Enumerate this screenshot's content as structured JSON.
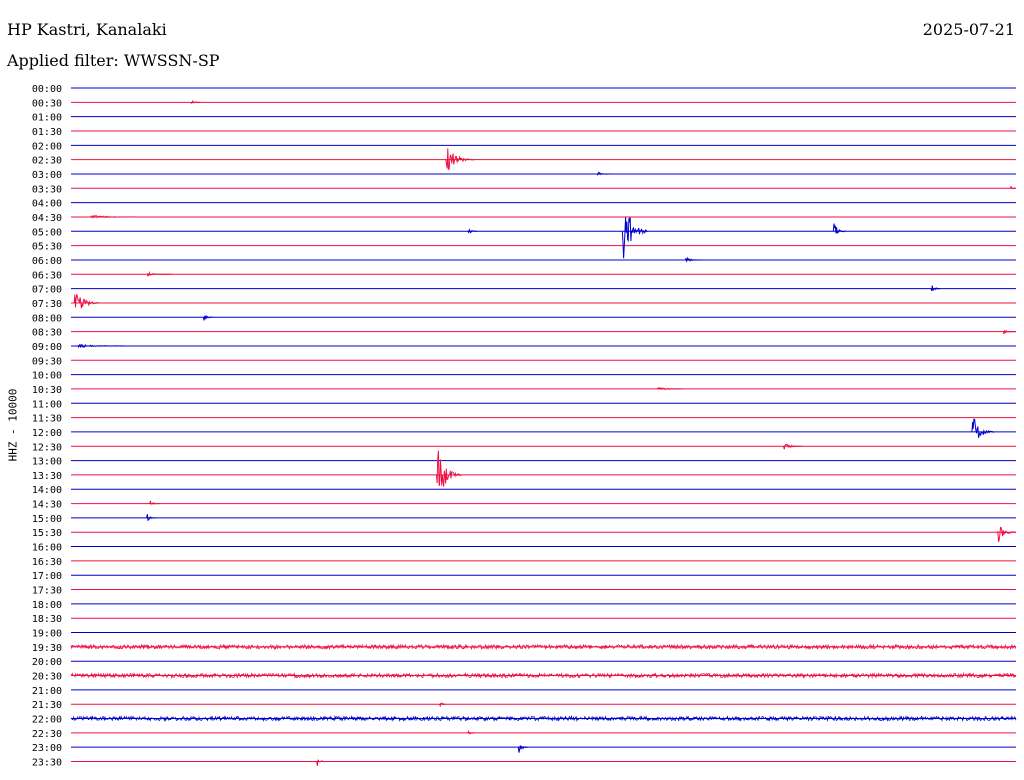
{
  "header": {
    "station": "HP Kastri, Kanalaki",
    "date": "2025-07-21",
    "filter": "Applied filter: WWSSN-SP"
  },
  "chart_data": {
    "type": "line",
    "title": "HP Kastri, Kanalaki",
    "subtitle": "Applied filter: WWSSN-SP",
    "date": "2025-07-21",
    "ylabel": "HHZ - 10000",
    "colors": {
      "even": "#0000cc",
      "odd": "#ee1144"
    },
    "row_labels": [
      "00:00",
      "00:30",
      "01:00",
      "01:30",
      "02:00",
      "02:30",
      "03:00",
      "03:30",
      "04:00",
      "04:30",
      "05:00",
      "05:30",
      "06:00",
      "06:30",
      "07:00",
      "07:30",
      "08:00",
      "08:30",
      "09:00",
      "09:30",
      "10:00",
      "10:30",
      "11:00",
      "11:30",
      "12:00",
      "12:30",
      "13:00",
      "13:30",
      "14:00",
      "14:30",
      "15:00",
      "15:30",
      "16:00",
      "16:30",
      "17:00",
      "17:30",
      "18:00",
      "18:30",
      "19:00",
      "19:30",
      "20:00",
      "20:30",
      "21:00",
      "21:30",
      "22:00",
      "22:30",
      "23:00",
      "23:30"
    ],
    "x_range_minutes": [
      0,
      30
    ],
    "events": [
      {
        "row": 1,
        "minute": 3.8,
        "amp": 0.15,
        "dur": 0.3
      },
      {
        "row": 5,
        "minute": 11.9,
        "amp": 1.0,
        "dur": 0.9
      },
      {
        "row": 6,
        "minute": 16.7,
        "amp": 0.12,
        "dur": 0.5
      },
      {
        "row": 7,
        "minute": 29.8,
        "amp": 0.2,
        "dur": 0.2
      },
      {
        "row": 9,
        "minute": 0.6,
        "amp": 0.12,
        "dur": 1.5
      },
      {
        "row": 10,
        "minute": 12.6,
        "amp": 0.25,
        "dur": 0.3
      },
      {
        "row": 10,
        "minute": 17.5,
        "amp": 2.6,
        "dur": 0.8
      },
      {
        "row": 10,
        "minute": 24.2,
        "amp": 0.6,
        "dur": 0.4
      },
      {
        "row": 12,
        "minute": 19.5,
        "amp": 0.15,
        "dur": 0.6
      },
      {
        "row": 13,
        "minute": 2.4,
        "amp": 0.12,
        "dur": 0.8
      },
      {
        "row": 14,
        "minute": 27.3,
        "amp": 0.3,
        "dur": 0.3
      },
      {
        "row": 15,
        "minute": 0.1,
        "amp": 0.9,
        "dur": 0.8
      },
      {
        "row": 16,
        "minute": 4.2,
        "amp": 0.25,
        "dur": 0.3
      },
      {
        "row": 17,
        "minute": 29.6,
        "amp": 0.15,
        "dur": 0.4
      },
      {
        "row": 18,
        "minute": 0.2,
        "amp": 0.12,
        "dur": 1.5
      },
      {
        "row": 21,
        "minute": 18.6,
        "amp": 0.12,
        "dur": 0.8
      },
      {
        "row": 24,
        "minute": 28.6,
        "amp": 1.2,
        "dur": 0.7
      },
      {
        "row": 25,
        "minute": 22.6,
        "amp": 0.25,
        "dur": 0.6
      },
      {
        "row": 27,
        "minute": 11.6,
        "amp": 1.9,
        "dur": 0.8
      },
      {
        "row": 29,
        "minute": 2.5,
        "amp": 0.2,
        "dur": 0.3
      },
      {
        "row": 30,
        "minute": 2.4,
        "amp": 0.3,
        "dur": 0.3
      },
      {
        "row": 31,
        "minute": 29.4,
        "amp": 0.7,
        "dur": 0.6
      },
      {
        "row": 39,
        "minute": 0.0,
        "amp": 0.1,
        "dur": 30
      },
      {
        "row": 41,
        "minute": 0.0,
        "amp": 0.1,
        "dur": 30
      },
      {
        "row": 43,
        "minute": 11.7,
        "amp": 0.25,
        "dur": 0.2
      },
      {
        "row": 44,
        "minute": 0.0,
        "amp": 0.1,
        "dur": 30
      },
      {
        "row": 45,
        "minute": 12.6,
        "amp": 0.25,
        "dur": 0.2
      },
      {
        "row": 46,
        "minute": 14.2,
        "amp": 0.45,
        "dur": 0.3
      },
      {
        "row": 47,
        "minute": 7.8,
        "amp": 0.3,
        "dur": 0.3
      }
    ]
  }
}
